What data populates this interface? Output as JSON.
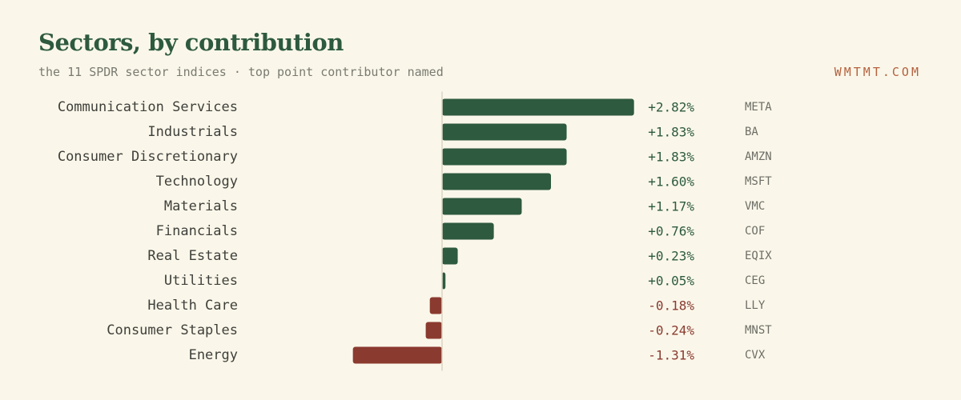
{
  "header": {
    "title": "Sectors, by contribution",
    "subtitle": "the 11 SPDR sector indices · top point contributor named",
    "brand": "WMTMT.COM"
  },
  "colors": {
    "background": "#faf7ea",
    "positive": "#2e5a3f",
    "negative": "#8b3a2f",
    "brand": "#b5613e",
    "axis": "#d9d4c2"
  },
  "chart_data": {
    "type": "bar",
    "orientation": "horizontal",
    "categories": [
      "Communication Services",
      "Industrials",
      "Consumer Discretionary",
      "Technology",
      "Materials",
      "Financials",
      "Real Estate",
      "Utilities",
      "Health Care",
      "Consumer Staples",
      "Energy"
    ],
    "values": [
      2.82,
      1.83,
      1.83,
      1.6,
      1.17,
      0.76,
      0.23,
      0.05,
      -0.18,
      -0.24,
      -1.31
    ],
    "value_labels": [
      "+2.82%",
      "+1.83%",
      "+1.83%",
      "+1.60%",
      "+1.17%",
      "+0.76%",
      "+0.23%",
      "+0.05%",
      "-0.18%",
      "-0.24%",
      "-1.31%"
    ],
    "top_contributors": [
      "META",
      "BA",
      "AMZN",
      "MSFT",
      "VMC",
      "COF",
      "EQIX",
      "CEG",
      "LLY",
      "MNST",
      "CVX"
    ],
    "unit": "%",
    "grid": false,
    "legend": "none"
  }
}
